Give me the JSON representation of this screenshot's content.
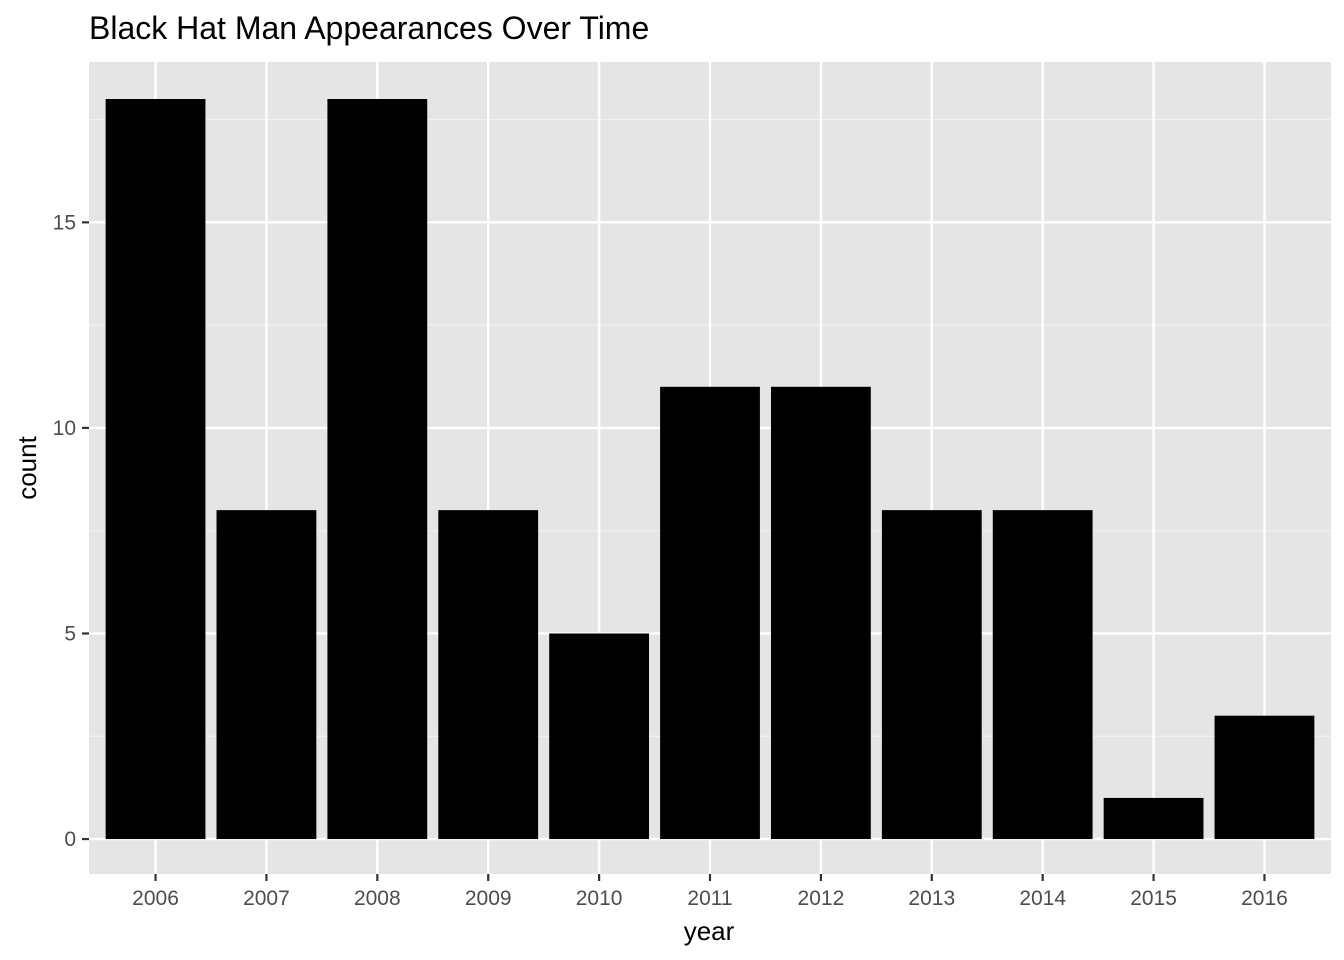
{
  "chart_data": {
    "type": "bar",
    "title": "Black Hat Man Appearances Over Time",
    "xlabel": "year",
    "ylabel": "count",
    "categories": [
      "2006",
      "2007",
      "2008",
      "2009",
      "2010",
      "2011",
      "2012",
      "2013",
      "2014",
      "2015",
      "2016"
    ],
    "values": [
      18,
      8,
      18,
      8,
      5,
      11,
      11,
      8,
      8,
      1,
      3
    ],
    "yticks": [
      0,
      5,
      10,
      15
    ],
    "ytick_labels": [
      "0",
      "5",
      "10",
      "15"
    ],
    "ylim": [
      -0.85,
      18.9
    ],
    "grid": true,
    "legend": "none",
    "colors": {
      "bar": "#000000",
      "panel": "#e5e5e5",
      "grid_major": "#ffffff",
      "grid_minor": "#f2f2f2",
      "tick_text": "#4d4d4d",
      "tick_mark": "#333333"
    }
  }
}
